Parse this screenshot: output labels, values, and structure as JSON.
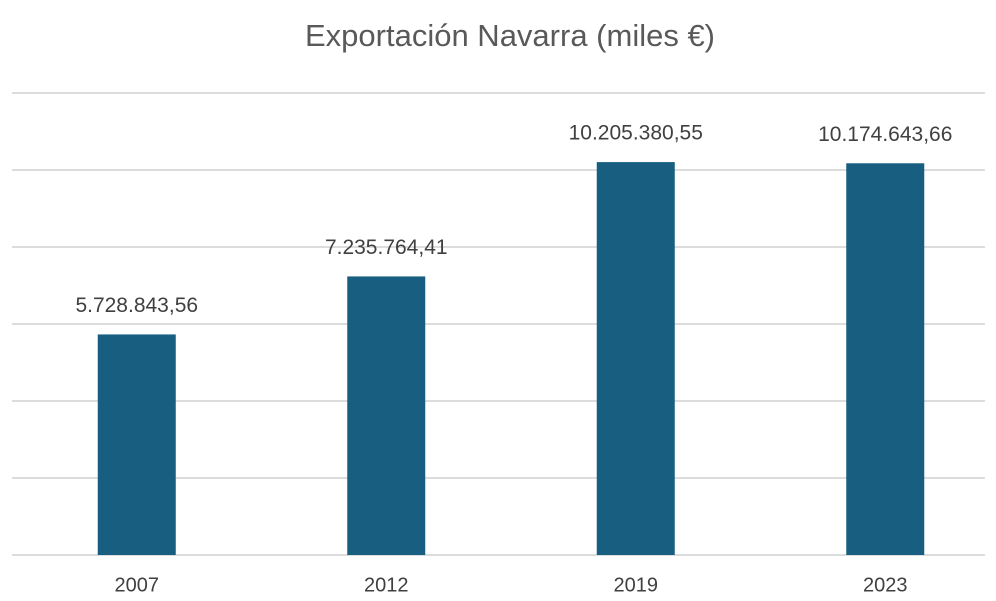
{
  "chart_data": {
    "type": "bar",
    "title": "Exportación Navarra (miles €)",
    "categories": [
      "2007",
      "2012",
      "2019",
      "2023"
    ],
    "values": [
      5728843.56,
      7235764.41,
      10205380.55,
      10174643.66
    ],
    "value_labels": [
      "5.728.843,56",
      "7.235.764,41",
      "10.205.380,55",
      "10.174.643,66"
    ],
    "color": "#175e80",
    "ylim": [
      0,
      12000000
    ],
    "yticks": [
      0,
      2000000,
      4000000,
      6000000,
      8000000,
      10000000,
      12000000
    ],
    "grid": true
  }
}
